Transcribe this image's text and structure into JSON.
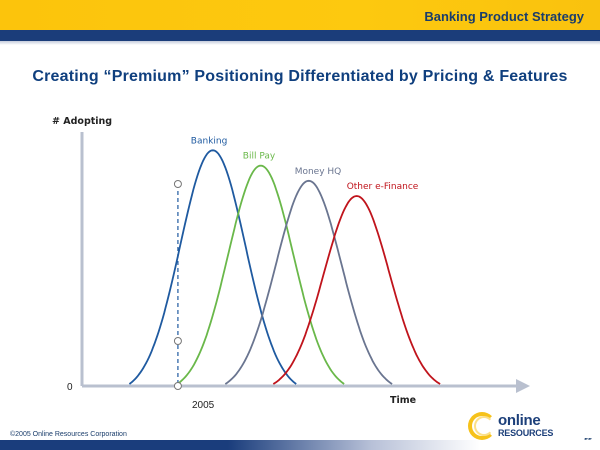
{
  "header": {
    "section_title": "Banking Product Strategy"
  },
  "slide": {
    "title": "Creating “Premium” Positioning Differentiated by Pricing & Features"
  },
  "chart_data": {
    "type": "line",
    "title": "",
    "ylabel": "# Adopting",
    "xlabel": "Time",
    "y_origin_label": "0",
    "x_marker_label": "2005",
    "x_marker_position": 0.22,
    "series": [
      {
        "name": "Banking",
        "color": "#1f5aa0",
        "peak_x": 0.3,
        "peak_y": 0.92,
        "spread": 0.075
      },
      {
        "name": "Bill Pay",
        "color": "#6ab84a",
        "peak_x": 0.41,
        "peak_y": 0.86,
        "spread": 0.075
      },
      {
        "name": "Money HQ",
        "color": "#6a7590",
        "peak_x": 0.52,
        "peak_y": 0.8,
        "spread": 0.075
      },
      {
        "name": "Other e-Finance",
        "color": "#c0141c",
        "peak_x": 0.63,
        "peak_y": 0.74,
        "spread": 0.075
      }
    ],
    "marker_points": [
      {
        "series": "Banking",
        "label": "Banking at 2005"
      },
      {
        "series": "Bill Pay",
        "label": "Bill Pay at 2005"
      },
      {
        "series": "axis",
        "label": "2005 on time axis"
      }
    ],
    "grid": false,
    "legend": "inline-labels"
  },
  "footer": {
    "copyright": "©2005 Online Resources Corporation",
    "page_number": "55",
    "logo_top": "online",
    "logo_bottom": "RESOURCES"
  }
}
